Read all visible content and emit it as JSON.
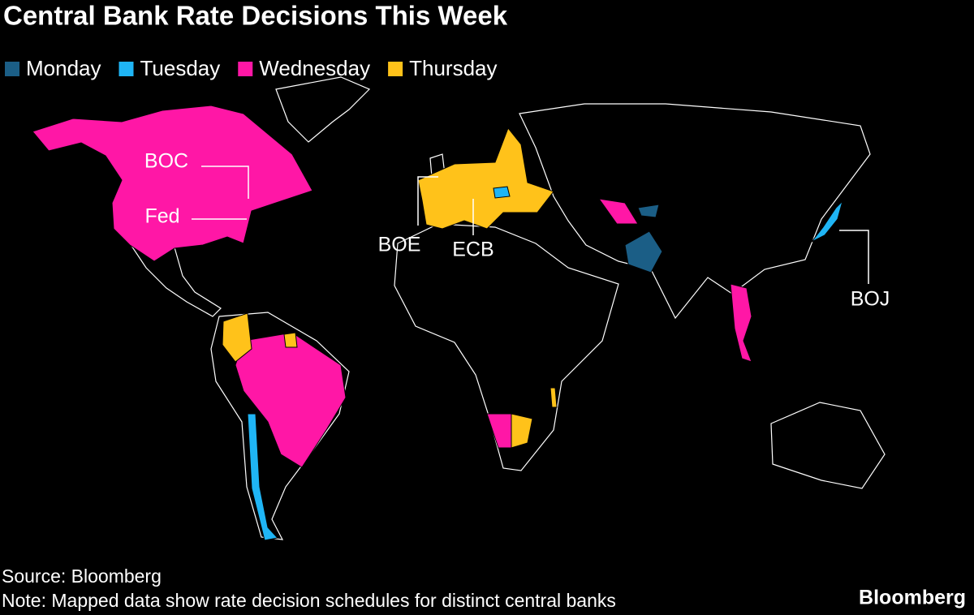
{
  "title": "Central Bank Rate Decisions This Week",
  "legend": [
    {
      "name": "Monday",
      "color": "#1b5e86"
    },
    {
      "name": "Tuesday",
      "color": "#1fb5f5"
    },
    {
      "name": "Wednesday",
      "color": "#ff17a6"
    },
    {
      "name": "Thursday",
      "color": "#ffc21a"
    }
  ],
  "labels": [
    "BOC",
    "Fed",
    "BOE",
    "ECB",
    "BOJ"
  ],
  "source": "Source: Bloomberg",
  "note": "Note: Mapped data show rate decision schedules for distinct central banks",
  "logo": "Bloomberg"
}
